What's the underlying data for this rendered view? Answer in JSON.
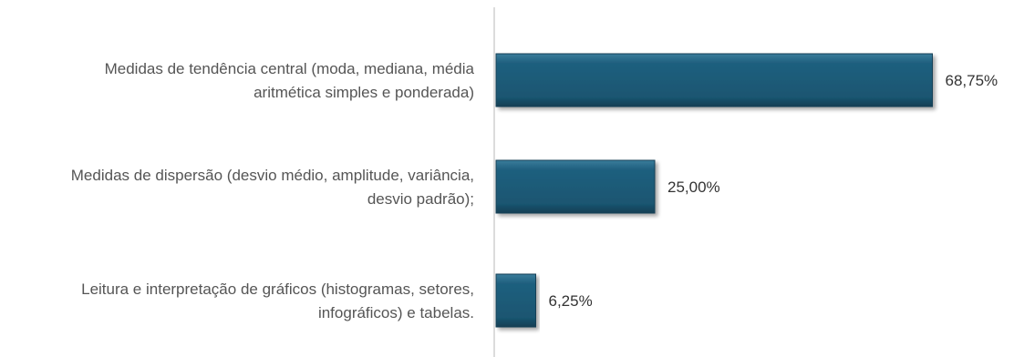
{
  "chart_data": {
    "type": "bar",
    "orientation": "horizontal",
    "categories": [
      {
        "lines": [
          "Medidas de tendência central (moda, mediana, média",
          "aritmética simples e ponderada)"
        ]
      },
      {
        "lines": [
          "Medidas de dispersão (desvio médio, amplitude, variância,",
          "desvio padrão);"
        ]
      },
      {
        "lines": [
          "Leitura e interpretação de gráficos (histogramas, setores,",
          "infográficos) e tabelas."
        ]
      }
    ],
    "values": [
      68.75,
      25.0,
      6.25
    ],
    "data_labels": [
      "68,75%",
      "25,00%",
      "6,25%"
    ],
    "xlim": [
      0,
      100
    ],
    "grid": false,
    "legend": "none",
    "bar_color": "#1f5c7a",
    "bar_highlight": "#3d7f9f",
    "bar_shadow": "#124157",
    "axis_color": "#d0d0d0"
  }
}
